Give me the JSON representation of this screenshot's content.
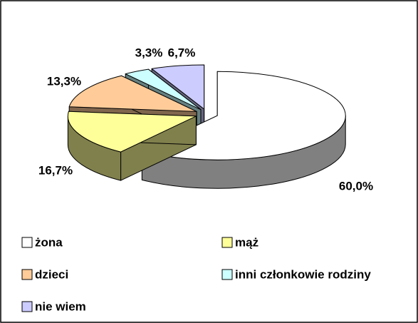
{
  "chart_data": {
    "type": "pie3d",
    "categories": [
      "żona",
      "mąż",
      "dzieci",
      "inni członkowie rodziny",
      "nie wiem"
    ],
    "values": [
      60.0,
      16.7,
      13.3,
      3.3,
      6.7
    ],
    "value_labels": [
      "60,0%",
      "16,7%",
      "13,3%",
      "3,3%",
      "6,7%"
    ],
    "colors": [
      "#ffffff",
      "#ffff99",
      "#ffcc99",
      "#ccffff",
      "#ccccff"
    ],
    "legend": "bottom"
  }
}
